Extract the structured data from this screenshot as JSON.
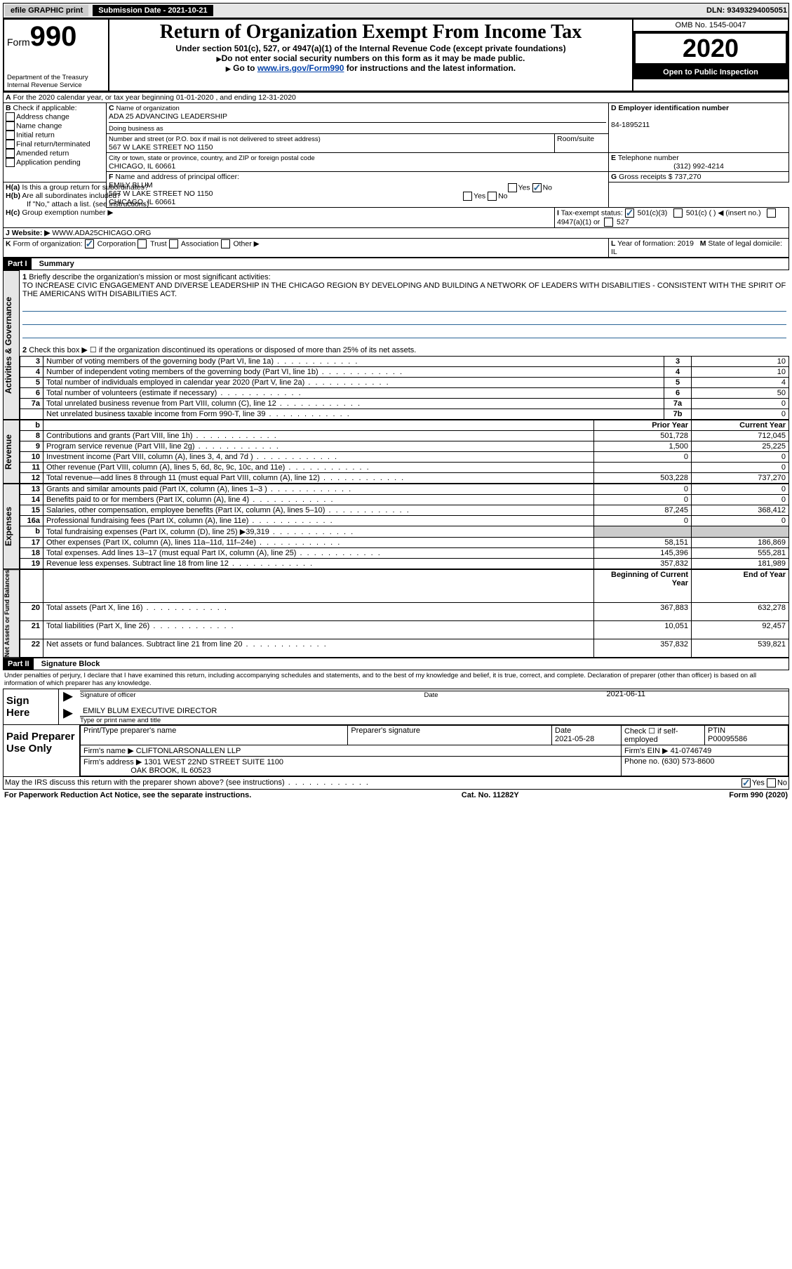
{
  "topbar": {
    "efile": "efile GRAPHIC print",
    "subdate_label": "Submission Date - 2021-10-21",
    "dln": "DLN: 93493294005051"
  },
  "header": {
    "form_word": "Form",
    "form_no": "990",
    "dept": "Department of the Treasury\nInternal Revenue Service",
    "title": "Return of Organization Exempt From Income Tax",
    "sub1": "Under section 501(c), 527, or 4947(a)(1) of the Internal Revenue Code (except private foundations)",
    "sub2": "Do not enter social security numbers on this form as it may be made public.",
    "sub3_pre": "Go to ",
    "sub3_link": "www.irs.gov/Form990",
    "sub3_post": " for instructions and the latest information.",
    "omb": "OMB No. 1545-0047",
    "year": "2020",
    "open": "Open to Public Inspection"
  },
  "A": {
    "line": "For the 2020 calendar year, or tax year beginning 01-01-2020   , and ending 12-31-2020"
  },
  "B": {
    "label": "Check if applicable:",
    "opts": [
      "Address change",
      "Name change",
      "Initial return",
      "Final return/terminated",
      "Amended return",
      "Application pending"
    ]
  },
  "C": {
    "name_label": "Name of organization",
    "name": "ADA 25 ADVANCING LEADERSHIP",
    "dba_label": "Doing business as",
    "addr_label": "Number and street (or P.O. box if mail is not delivered to street address)",
    "suite_label": "Room/suite",
    "addr": "567 W LAKE STREET NO 1150",
    "city_label": "City or town, state or province, country, and ZIP or foreign postal code",
    "city": "CHICAGO, IL  60661"
  },
  "D": {
    "label": "Employer identification number",
    "val": "84-1895211"
  },
  "E": {
    "label": "Telephone number",
    "val": "(312) 992-4214"
  },
  "G": {
    "label": "Gross receipts $",
    "val": "737,270"
  },
  "F": {
    "label": "Name and address of principal officer:",
    "name": "EMILY BLUM",
    "addr1": "567 W LAKE STREET NO 1150",
    "addr2": "CHICAGO, IL  60661"
  },
  "H": {
    "a": "Is this a group return for subordinates?",
    "b": "Are all subordinates included?",
    "note": "If \"No,\" attach a list. (see instructions)",
    "c": "Group exemption number ▶"
  },
  "I": {
    "label": "Tax-exempt status:",
    "o1": "501(c)(3)",
    "o2": "501(c) (  ) ◀ (insert no.)",
    "o3": "4947(a)(1) or",
    "o4": "527"
  },
  "J": {
    "label": "Website: ▶",
    "val": "WWW.ADA25CHICAGO.ORG"
  },
  "K": {
    "label": "Form of organization:",
    "corp": "Corporation",
    "trust": "Trust",
    "assoc": "Association",
    "other": "Other ▶"
  },
  "L": {
    "label": "Year of formation:",
    "val": "2019"
  },
  "M": {
    "label": "State of legal domicile:",
    "val": "IL"
  },
  "part1": {
    "hdr": "Part I",
    "title": "Summary"
  },
  "mission": {
    "label": "Briefly describe the organization's mission or most significant activities:",
    "text": "TO INCREASE CIVIC ENGAGEMENT AND DIVERSE LEADERSHIP IN THE CHICAGO REGION BY DEVELOPING AND BUILDING A NETWORK OF LEADERS WITH DISABILITIES - CONSISTENT WITH THE SPIRIT OF THE AMERICANS WITH DISABILITIES ACT."
  },
  "line2": "Check this box ▶ ☐  if the organization discontinued its operations or disposed of more than 25% of its net assets.",
  "gov_rows": [
    {
      "n": "3",
      "t": "Number of voting members of the governing body (Part VI, line 1a)",
      "b": "3",
      "v": "10"
    },
    {
      "n": "4",
      "t": "Number of independent voting members of the governing body (Part VI, line 1b)",
      "b": "4",
      "v": "10"
    },
    {
      "n": "5",
      "t": "Total number of individuals employed in calendar year 2020 (Part V, line 2a)",
      "b": "5",
      "v": "4"
    },
    {
      "n": "6",
      "t": "Total number of volunteers (estimate if necessary)",
      "b": "6",
      "v": "50"
    },
    {
      "n": "7a",
      "t": "Total unrelated business revenue from Part VIII, column (C), line 12",
      "b": "7a",
      "v": "0"
    },
    {
      "n": "",
      "t": "Net unrelated business taxable income from Form 990-T, line 39",
      "b": "7b",
      "v": "0"
    }
  ],
  "rev_hdr": {
    "b": "b",
    "py": "Prior Year",
    "cy": "Current Year"
  },
  "rev_rows": [
    {
      "n": "8",
      "t": "Contributions and grants (Part VIII, line 1h)",
      "py": "501,728",
      "cy": "712,045"
    },
    {
      "n": "9",
      "t": "Program service revenue (Part VIII, line 2g)",
      "py": "1,500",
      "cy": "25,225"
    },
    {
      "n": "10",
      "t": "Investment income (Part VIII, column (A), lines 3, 4, and 7d )",
      "py": "0",
      "cy": "0"
    },
    {
      "n": "11",
      "t": "Other revenue (Part VIII, column (A), lines 5, 6d, 8c, 9c, 10c, and 11e)",
      "py": "",
      "cy": "0"
    },
    {
      "n": "12",
      "t": "Total revenue—add lines 8 through 11 (must equal Part VIII, column (A), line 12)",
      "py": "503,228",
      "cy": "737,270"
    }
  ],
  "exp_rows": [
    {
      "n": "13",
      "t": "Grants and similar amounts paid (Part IX, column (A), lines 1–3 )",
      "py": "0",
      "cy": "0"
    },
    {
      "n": "14",
      "t": "Benefits paid to or for members (Part IX, column (A), line 4)",
      "py": "0",
      "cy": "0"
    },
    {
      "n": "15",
      "t": "Salaries, other compensation, employee benefits (Part IX, column (A), lines 5–10)",
      "py": "87,245",
      "cy": "368,412"
    },
    {
      "n": "16a",
      "t": "Professional fundraising fees (Part IX, column (A), line 11e)",
      "py": "0",
      "cy": "0"
    },
    {
      "n": "b",
      "t": "Total fundraising expenses (Part IX, column (D), line 25) ▶39,319",
      "py": "SHADE",
      "cy": "SHADE"
    },
    {
      "n": "17",
      "t": "Other expenses (Part IX, column (A), lines 11a–11d, 11f–24e)",
      "py": "58,151",
      "cy": "186,869"
    },
    {
      "n": "18",
      "t": "Total expenses. Add lines 13–17 (must equal Part IX, column (A), line 25)",
      "py": "145,396",
      "cy": "555,281"
    },
    {
      "n": "19",
      "t": "Revenue less expenses. Subtract line 18 from line 12",
      "py": "357,832",
      "cy": "181,989"
    }
  ],
  "na_hdr": {
    "py": "Beginning of Current Year",
    "cy": "End of Year"
  },
  "na_rows": [
    {
      "n": "20",
      "t": "Total assets (Part X, line 16)",
      "py": "367,883",
      "cy": "632,278"
    },
    {
      "n": "21",
      "t": "Total liabilities (Part X, line 26)",
      "py": "10,051",
      "cy": "92,457"
    },
    {
      "n": "22",
      "t": "Net assets or fund balances. Subtract line 21 from line 20",
      "py": "357,832",
      "cy": "539,821"
    }
  ],
  "part2": {
    "hdr": "Part II",
    "title": "Signature Block"
  },
  "penalties": "Under penalties of perjury, I declare that I have examined this return, including accompanying schedules and statements, and to the best of my knowledge and belief, it is true, correct, and complete. Declaration of preparer (other than officer) is based on all information of which preparer has any knowledge.",
  "sign": {
    "here": "Sign Here",
    "sig_label": "Signature of officer",
    "date_label": "Date",
    "date": "2021-06-11",
    "name": "EMILY BLUM  EXECUTIVE DIRECTOR",
    "name_label": "Type or print name and title"
  },
  "paid": {
    "here": "Paid Preparer Use Only",
    "pname_l": "Print/Type preparer's name",
    "psig_l": "Preparer's signature",
    "pdate_l": "Date",
    "pdate": "2021-05-28",
    "check_l": "Check ☐ if self-employed",
    "ptin_l": "PTIN",
    "ptin": "P00095586",
    "firm_l": "Firm's name   ▶",
    "firm": "CLIFTONLARSONALLEN LLP",
    "fein_l": "Firm's EIN ▶",
    "fein": "41-0746749",
    "faddr_l": "Firm's address ▶",
    "faddr1": "1301 WEST 22ND STREET SUITE 1100",
    "faddr2": "OAK BROOK, IL  60523",
    "phone_l": "Phone no.",
    "phone": "(630) 573-8600"
  },
  "discuss": "May the IRS discuss this return with the preparer shown above? (see instructions)",
  "footer": {
    "l": "For Paperwork Reduction Act Notice, see the separate instructions.",
    "c": "Cat. No. 11282Y",
    "r": "Form 990 (2020)"
  }
}
